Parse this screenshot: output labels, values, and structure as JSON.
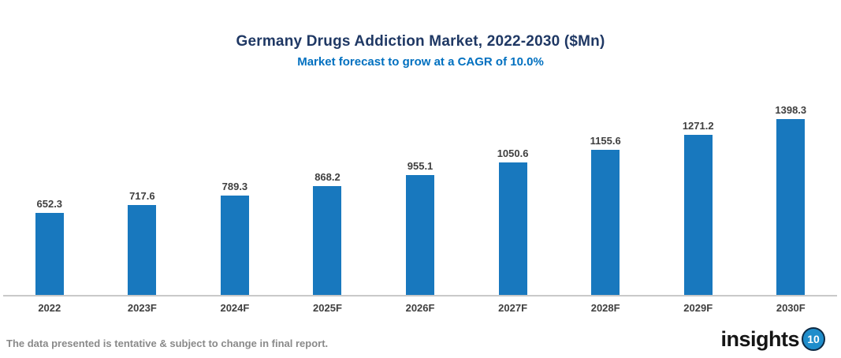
{
  "header": {
    "title": "Germany Drugs Addiction Market, 2022-2030 ($Mn)",
    "subtitle": "Market forecast to grow at a CAGR of 10.0%"
  },
  "chart_data": {
    "type": "bar",
    "title": "Germany Drugs Addiction Market, 2022-2030 ($Mn)",
    "subtitle": "Market forecast to grow at a CAGR of 10.0%",
    "categories": [
      "2022",
      "2023F",
      "2024F",
      "2025F",
      "2026F",
      "2027F",
      "2028F",
      "2029F",
      "2030F"
    ],
    "values": [
      652.3,
      717.6,
      789.3,
      868.2,
      955.1,
      1050.6,
      1155.6,
      1271.2,
      1398.3
    ],
    "xlabel": "",
    "ylabel": "",
    "ylim": [
      0,
      1400
    ],
    "grid": false,
    "legend": "none",
    "data_labels": true,
    "bar_color": "#1878BE",
    "axis_line_color": "#C9C9C9",
    "label_color": "#3F3F3F",
    "title_color": "#1F3864",
    "subtitle_color": "#0070C0"
  },
  "footer": {
    "note": "The data presented is tentative & subject to change in final report.",
    "logo_text": "insights",
    "logo_badge": "10"
  }
}
